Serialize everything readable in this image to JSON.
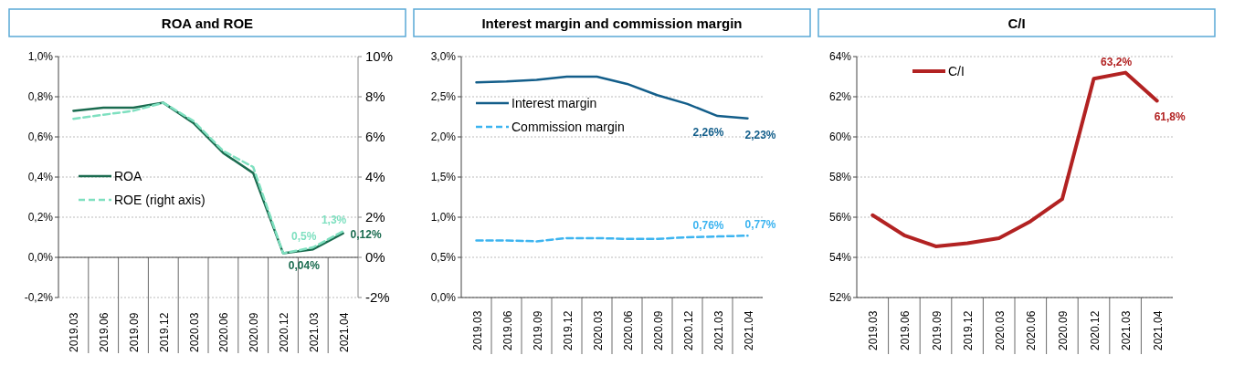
{
  "chart_data": [
    {
      "type": "line",
      "title": "ROA and ROE",
      "categories": [
        "2019.03",
        "2019.06",
        "2019.09",
        "2019.12",
        "2020.03",
        "2020.06",
        "2020.09",
        "2020.12",
        "2021.03",
        "2021.04"
      ],
      "series": [
        {
          "name": "ROA",
          "color": "#1a6b4f",
          "line_style": "solid",
          "values": [
            0.73,
            0.745,
            0.745,
            0.77,
            0.67,
            0.52,
            0.42,
            0.02,
            0.04,
            0.12
          ],
          "value_labels": [
            null,
            null,
            null,
            null,
            null,
            null,
            null,
            null,
            "0,04%",
            "0,12%"
          ]
        },
        {
          "name": "ROE (right axis)",
          "color": "#7fe0c0",
          "line_style": "dashed",
          "axis": "y2",
          "values": [
            6.9,
            7.1,
            7.3,
            7.7,
            6.8,
            5.3,
            4.5,
            0.2,
            0.5,
            1.3
          ],
          "value_labels": [
            null,
            null,
            null,
            null,
            null,
            null,
            null,
            null,
            "0,5%",
            "1,3%"
          ]
        }
      ],
      "ylim": [
        -0.2,
        1.0
      ],
      "yticks": [
        {
          "value": -0.2,
          "label": "-0,2%"
        },
        {
          "value": 0,
          "label": "0,0%"
        },
        {
          "value": 0.2,
          "label": "0,2%"
        },
        {
          "value": 0.4,
          "label": "0,4%"
        },
        {
          "value": 0.6,
          "label": "0,6%"
        },
        {
          "value": 0.8,
          "label": "0,8%"
        },
        {
          "value": 1.0,
          "label": "1,0%"
        }
      ],
      "y2lim": [
        -2,
        10
      ],
      "y2ticks": [
        {
          "value": -2,
          "label": "-2%"
        },
        {
          "value": 0,
          "label": "0%"
        },
        {
          "value": 2,
          "label": "2%"
        },
        {
          "value": 4,
          "label": "4%"
        },
        {
          "value": 6,
          "label": "6%"
        },
        {
          "value": 8,
          "label": "8%"
        },
        {
          "value": 10,
          "label": "10%"
        }
      ],
      "grid": "y",
      "legend": "left",
      "marker": "none"
    },
    {
      "type": "line",
      "title": "Interest margin and commission margin",
      "categories": [
        "2019.03",
        "2019.06",
        "2019.09",
        "2019.12",
        "2020.03",
        "2020.06",
        "2020.09",
        "2020.12",
        "2021.03",
        "2021.04"
      ],
      "series": [
        {
          "name": "Interest margin",
          "color": "#135e8a",
          "line_style": "solid",
          "values": [
            2.68,
            2.69,
            2.71,
            2.75,
            2.75,
            2.66,
            2.52,
            2.41,
            2.26,
            2.23
          ],
          "value_labels": [
            null,
            null,
            null,
            null,
            null,
            null,
            null,
            null,
            "2,26%",
            "2,23%"
          ]
        },
        {
          "name": "Commission margin",
          "color": "#3cb4f0",
          "line_style": "dashed",
          "values": [
            0.71,
            0.71,
            0.7,
            0.74,
            0.74,
            0.73,
            0.73,
            0.75,
            0.76,
            0.77
          ],
          "value_labels": [
            null,
            null,
            null,
            null,
            null,
            null,
            null,
            null,
            "0,76%",
            "0,77%"
          ]
        }
      ],
      "ylim": [
        0,
        3.0
      ],
      "yticks": [
        {
          "value": 0,
          "label": "0,0%"
        },
        {
          "value": 0.5,
          "label": "0,5%"
        },
        {
          "value": 1.0,
          "label": "1,0%"
        },
        {
          "value": 1.5,
          "label": "1,5%"
        },
        {
          "value": 2.0,
          "label": "2,0%"
        },
        {
          "value": 2.5,
          "label": "2,5%"
        },
        {
          "value": 3.0,
          "label": "3,0%"
        }
      ],
      "grid": "y",
      "legend": "left",
      "marker": "none"
    },
    {
      "type": "line",
      "title": "C/I",
      "categories": [
        "2019.03",
        "2019.06",
        "2019.09",
        "2019.12",
        "2020.03",
        "2020.06",
        "2020.09",
        "2020.12",
        "2021.03",
        "2021.04"
      ],
      "series": [
        {
          "name": "C/I",
          "color": "#b22222",
          "line_style": "solid",
          "values": [
            56.1,
            55.1,
            54.55,
            54.7,
            54.95,
            55.8,
            56.9,
            62.9,
            63.2,
            61.8
          ],
          "value_labels": [
            null,
            null,
            null,
            null,
            null,
            null,
            null,
            null,
            "63,2%",
            "61,8%"
          ]
        }
      ],
      "ylim": [
        52,
        64
      ],
      "yticks": [
        {
          "value": 52,
          "label": "52%"
        },
        {
          "value": 54,
          "label": "54%"
        },
        {
          "value": 56,
          "label": "56%"
        },
        {
          "value": 58,
          "label": "58%"
        },
        {
          "value": 60,
          "label": "60%"
        },
        {
          "value": 62,
          "label": "62%"
        },
        {
          "value": 64,
          "label": "64%"
        }
      ],
      "grid": "y",
      "legend": "top left",
      "marker": "none"
    }
  ]
}
